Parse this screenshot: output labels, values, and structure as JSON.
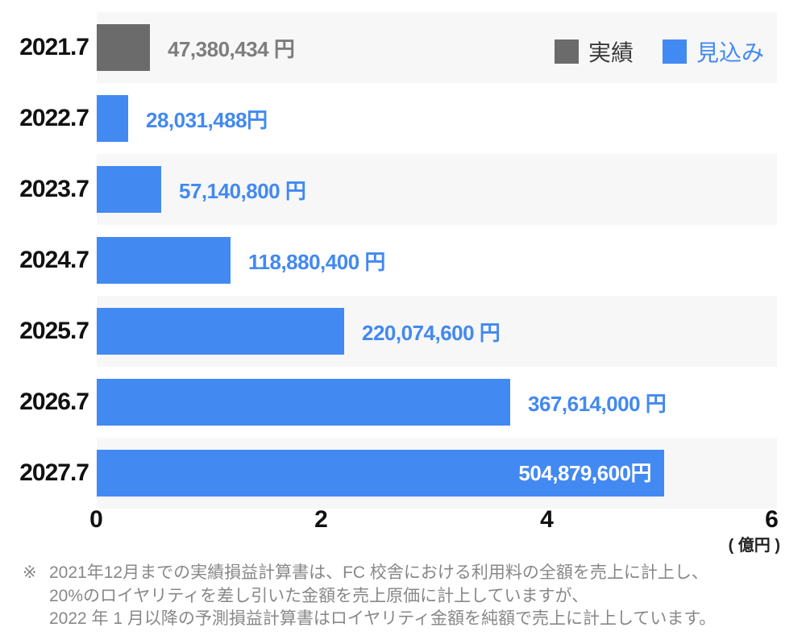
{
  "colors": {
    "actual": "#6b6b6b",
    "forecast": "#4289f2",
    "value_actual": "#7d7d7d",
    "band": "#f7f7f7",
    "year_label": "#111111",
    "legend_actual_text": "#3a3a3a",
    "inside_label": "#ffffff",
    "footnote_text": "#888888"
  },
  "chart_data": {
    "type": "bar",
    "orientation": "horizontal",
    "categories": [
      "2021.7",
      "2022.7",
      "2023.7",
      "2024.7",
      "2025.7",
      "2026.7",
      "2027.7"
    ],
    "values_yen": [
      47380434,
      28031488,
      57140800,
      118880400,
      220074600,
      367614000,
      504879600
    ],
    "value_labels": [
      "47,380,434 円",
      "28,031,488円",
      "57,140,800 円",
      "118,880,400 円",
      "220,074,600 円",
      "367,614,000 円",
      "504,879,600円"
    ],
    "series_by_row": [
      "actual",
      "forecast",
      "forecast",
      "forecast",
      "forecast",
      "forecast",
      "forecast"
    ],
    "value_label_inside": [
      false,
      false,
      false,
      false,
      false,
      false,
      true
    ],
    "legend_entries": [
      {
        "name": "actual",
        "label": "実績",
        "color": "#6b6b6b"
      },
      {
        "name": "forecast",
        "label": "見込み",
        "color": "#4289f2"
      }
    ],
    "x_axis": {
      "ticks": [
        "0",
        "2",
        "4",
        "6"
      ],
      "unit_label": "( 億円 )",
      "max_oku": 6,
      "xlim": [
        0,
        600000000
      ],
      "grid": false
    },
    "layout_hints": {
      "legend_position": "top-right",
      "striped_rows": "odd"
    }
  },
  "footnote": {
    "marker": "※",
    "lines": [
      "2021年12月までの実績損益計算書は、FC 校舎における利用料の全額を売上に計上し、",
      "20%のロイヤリティを差し引いた金額を売上原価に計上していますが、",
      "2022 年 1 月以降の予測損益計算書はロイヤリティ金額を純額で売上に計上しています。"
    ]
  }
}
